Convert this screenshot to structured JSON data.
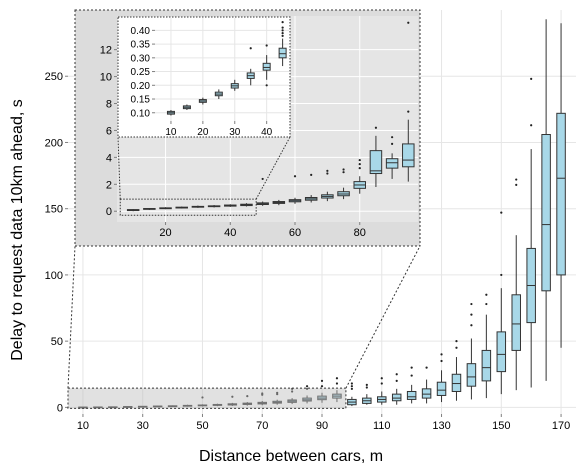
{
  "chart_data": [
    {
      "type": "box",
      "xlabel": "Distance between cars, m",
      "ylabel": "Delay to request data 10km ahead, s",
      "xlim": [
        5,
        175
      ],
      "ylim": [
        -5,
        300
      ],
      "xticks": [
        10,
        30,
        50,
        70,
        90,
        110,
        130,
        150,
        170
      ],
      "yticks": [
        0,
        50,
        100,
        150,
        200,
        250
      ],
      "grid": true,
      "box_fill": "#a8d8e8",
      "series": [
        {
          "x": 10,
          "min": 0,
          "q1": 0.1,
          "median": 0.1,
          "q3": 0.2,
          "max": 0.2,
          "outliers": []
        },
        {
          "x": 15,
          "min": 0.1,
          "q1": 0.2,
          "median": 0.2,
          "q3": 0.3,
          "max": 0.3,
          "outliers": []
        },
        {
          "x": 20,
          "min": 0.1,
          "q1": 0.3,
          "median": 0.3,
          "q3": 0.4,
          "max": 0.5,
          "outliers": []
        },
        {
          "x": 25,
          "min": 0.2,
          "q1": 0.4,
          "median": 0.5,
          "q3": 0.6,
          "max": 0.7,
          "outliers": []
        },
        {
          "x": 30,
          "min": 0.3,
          "q1": 0.5,
          "median": 0.6,
          "q3": 0.8,
          "max": 1.0,
          "outliers": []
        },
        {
          "x": 35,
          "min": 0.4,
          "q1": 0.7,
          "median": 0.8,
          "q3": 1.0,
          "max": 1.3,
          "outliers": []
        },
        {
          "x": 40,
          "min": 0.5,
          "q1": 0.8,
          "median": 1.0,
          "q3": 1.2,
          "max": 1.5,
          "outliers": []
        },
        {
          "x": 45,
          "min": 0.6,
          "q1": 1.0,
          "median": 1.2,
          "q3": 1.5,
          "max": 2.0,
          "outliers": []
        },
        {
          "x": 50,
          "min": 0.7,
          "q1": 1.2,
          "median": 1.5,
          "q3": 1.8,
          "max": 2.3,
          "outliers": [
            7.5
          ]
        },
        {
          "x": 55,
          "min": 0.9,
          "q1": 1.5,
          "median": 1.8,
          "q3": 2.2,
          "max": 2.8,
          "outliers": []
        },
        {
          "x": 60,
          "min": 1.1,
          "q1": 1.8,
          "median": 2.2,
          "q3": 2.7,
          "max": 3.4,
          "outliers": [
            8
          ]
        },
        {
          "x": 65,
          "min": 1.3,
          "q1": 2.2,
          "median": 2.7,
          "q3": 3.2,
          "max": 4.0,
          "outliers": [
            8.5
          ]
        },
        {
          "x": 70,
          "min": 1.6,
          "q1": 2.6,
          "median": 3.2,
          "q3": 3.8,
          "max": 4.8,
          "outliers": [
            9.5,
            10.5
          ]
        },
        {
          "x": 75,
          "min": 2.0,
          "q1": 3.2,
          "median": 3.8,
          "q3": 4.6,
          "max": 5.8,
          "outliers": [
            10,
            11
          ]
        },
        {
          "x": 80,
          "min": 2.5,
          "q1": 3.8,
          "median": 4.7,
          "q3": 5.6,
          "max": 7.0,
          "outliers": [
            12,
            14
          ]
        },
        {
          "x": 85,
          "min": 3.0,
          "q1": 4.8,
          "median": 5.7,
          "q3": 7.0,
          "max": 9.0,
          "outliers": [
            14,
            16
          ]
        },
        {
          "x": 90,
          "min": 3.5,
          "q1": 5.8,
          "median": 7.0,
          "q3": 8.5,
          "max": 11.0,
          "outliers": [
            16,
            20
          ]
        },
        {
          "x": 95,
          "min": 4.0,
          "q1": 7.0,
          "median": 8.5,
          "q3": 10.0,
          "max": 13.0,
          "outliers": [
            18,
            22
          ]
        },
        {
          "x": 100,
          "min": 1.0,
          "q1": 2.0,
          "median": 4.0,
          "q3": 6.0,
          "max": 8.0,
          "outliers": [
            14,
            16,
            18
          ]
        },
        {
          "x": 105,
          "min": 2.0,
          "q1": 3.0,
          "median": 5.0,
          "q3": 7.0,
          "max": 10.0,
          "outliers": [
            15,
            17
          ]
        },
        {
          "x": 110,
          "min": 2.0,
          "q1": 4.0,
          "median": 6.0,
          "q3": 8.0,
          "max": 12.0,
          "outliers": [
            18,
            22
          ]
        },
        {
          "x": 115,
          "min": 2.0,
          "q1": 5.0,
          "median": 7.0,
          "q3": 10.0,
          "max": 14.0,
          "outliers": [
            20,
            25
          ]
        },
        {
          "x": 120,
          "min": 3.0,
          "q1": 6.0,
          "median": 8.0,
          "q3": 12.0,
          "max": 17.0,
          "outliers": [
            24,
            30
          ]
        },
        {
          "x": 125,
          "min": 3.0,
          "q1": 7.0,
          "median": 10.0,
          "q3": 14.0,
          "max": 21.0,
          "outliers": [
            30
          ]
        },
        {
          "x": 130,
          "min": 4.0,
          "q1": 9.0,
          "median": 13.0,
          "q3": 19.0,
          "max": 28.0,
          "outliers": [
            35,
            40
          ]
        },
        {
          "x": 135,
          "min": 5.0,
          "q1": 12.0,
          "median": 18.0,
          "q3": 25.0,
          "max": 38.0,
          "outliers": [
            45,
            50
          ]
        },
        {
          "x": 140,
          "min": 6.0,
          "q1": 16.0,
          "median": 23.0,
          "q3": 33.0,
          "max": 52.0,
          "outliers": [
            62,
            70,
            78
          ]
        },
        {
          "x": 145,
          "min": 7.0,
          "q1": 20.0,
          "median": 30.0,
          "q3": 43.0,
          "max": 70.0,
          "outliers": [
            78,
            85
          ]
        },
        {
          "x": 150,
          "min": 10.0,
          "q1": 27.0,
          "median": 40.0,
          "q3": 57.0,
          "max": 90.0,
          "outliers": [
            100,
            147
          ]
        },
        {
          "x": 155,
          "min": 13.0,
          "q1": 43.0,
          "median": 63.0,
          "q3": 85.0,
          "max": 130.0,
          "outliers": [
            168,
            172
          ]
        },
        {
          "x": 160,
          "min": 15.0,
          "q1": 64.0,
          "median": 92.0,
          "q3": 120.0,
          "max": 195.0,
          "outliers": [
            213,
            248
          ]
        },
        {
          "x": 165,
          "min": 20.0,
          "q1": 88.0,
          "median": 138.0,
          "q3": 206.0,
          "max": 293.0,
          "outliers": []
        },
        {
          "x": 170,
          "min": 45.0,
          "q1": 100.0,
          "median": 173.0,
          "q3": 222.0,
          "max": 290.0,
          "outliers": []
        }
      ]
    },
    {
      "type": "box",
      "role": "inset",
      "xlim": [
        5,
        98
      ],
      "ylim": [
        -0.8,
        14.5
      ],
      "xticks": [
        20,
        40,
        60,
        80
      ],
      "yticks": [
        0,
        2,
        4,
        6,
        8,
        10,
        12
      ],
      "grid": true,
      "box_fill": "#a8d8e8",
      "series": [
        {
          "x": 10,
          "min": 0,
          "q1": 0.05,
          "median": 0.1,
          "q3": 0.12,
          "max": 0.15,
          "outliers": []
        },
        {
          "x": 15,
          "min": 0.1,
          "q1": 0.15,
          "median": 0.18,
          "q3": 0.2,
          "max": 0.22,
          "outliers": []
        },
        {
          "x": 20,
          "min": 0.15,
          "q1": 0.2,
          "median": 0.22,
          "q3": 0.25,
          "max": 0.3,
          "outliers": []
        },
        {
          "x": 25,
          "min": 0.2,
          "q1": 0.25,
          "median": 0.28,
          "q3": 0.3,
          "max": 0.35,
          "outliers": []
        },
        {
          "x": 30,
          "min": 0.25,
          "q1": 0.3,
          "median": 0.33,
          "q3": 0.36,
          "max": 0.42,
          "outliers": []
        },
        {
          "x": 35,
          "min": 0.28,
          "q1": 0.34,
          "median": 0.37,
          "q3": 0.4,
          "max": 0.46,
          "outliers": []
        },
        {
          "x": 40,
          "min": 0.32,
          "q1": 0.38,
          "median": 0.42,
          "q3": 0.46,
          "max": 0.52,
          "outliers": []
        },
        {
          "x": 45,
          "min": 0.35,
          "q1": 0.42,
          "median": 0.47,
          "q3": 0.52,
          "max": 0.6,
          "outliers": []
        },
        {
          "x": 50,
          "min": 0.4,
          "q1": 0.5,
          "median": 0.56,
          "q3": 0.62,
          "max": 0.72,
          "outliers": [
            2.4
          ]
        },
        {
          "x": 55,
          "min": 0.45,
          "q1": 0.58,
          "median": 0.65,
          "q3": 0.72,
          "max": 0.84,
          "outliers": []
        },
        {
          "x": 60,
          "min": 0.55,
          "q1": 0.7,
          "median": 0.78,
          "q3": 0.86,
          "max": 1.0,
          "outliers": [
            2.6
          ]
        },
        {
          "x": 65,
          "min": 0.65,
          "q1": 0.82,
          "median": 0.92,
          "q3": 1.02,
          "max": 1.2,
          "outliers": [
            2.7
          ]
        },
        {
          "x": 70,
          "min": 0.75,
          "q1": 0.98,
          "median": 1.1,
          "q3": 1.22,
          "max": 1.45,
          "outliers": [
            2.8,
            3.0
          ]
        },
        {
          "x": 75,
          "min": 0.9,
          "q1": 1.15,
          "median": 1.28,
          "q3": 1.45,
          "max": 1.75,
          "outliers": [
            2.9,
            3.1
          ]
        },
        {
          "x": 80,
          "min": 1.3,
          "q1": 1.7,
          "median": 1.95,
          "q3": 2.2,
          "max": 2.6,
          "outliers": [
            3.2,
            3.5,
            3.8
          ]
        },
        {
          "x": 85,
          "min": 1.8,
          "q1": 2.8,
          "median": 3.0,
          "q3": 4.5,
          "max": 5.6,
          "outliers": [
            6.2
          ]
        },
        {
          "x": 90,
          "min": 2.4,
          "q1": 3.2,
          "median": 3.6,
          "q3": 3.9,
          "max": 4.3,
          "outliers": [
            5.0,
            5.5
          ]
        },
        {
          "x": 95,
          "min": 2.2,
          "q1": 3.3,
          "median": 3.8,
          "q3": 5.0,
          "max": 6.8,
          "outliers": [
            7.4,
            14.0
          ]
        }
      ]
    },
    {
      "type": "box",
      "role": "nested-inset",
      "xlim": [
        5,
        47
      ],
      "ylim": [
        0.07,
        0.445
      ],
      "xticks": [
        10,
        20,
        30,
        40
      ],
      "yticks": [
        0.1,
        0.15,
        0.2,
        0.25,
        0.3,
        0.35,
        0.4
      ],
      "ytick_labels": [
        "0.10",
        "0.15",
        "0.20",
        "0.25",
        "0.30",
        "0.35",
        "0.40"
      ],
      "grid": true,
      "box_fill": "#a8d8e8",
      "series": [
        {
          "x": 10,
          "min": 0.09,
          "q1": 0.095,
          "median": 0.1,
          "q3": 0.105,
          "max": 0.11,
          "outliers": []
        },
        {
          "x": 15,
          "min": 0.11,
          "q1": 0.115,
          "median": 0.12,
          "q3": 0.125,
          "max": 0.13,
          "outliers": []
        },
        {
          "x": 20,
          "min": 0.13,
          "q1": 0.138,
          "median": 0.143,
          "q3": 0.148,
          "max": 0.155,
          "outliers": []
        },
        {
          "x": 25,
          "min": 0.15,
          "q1": 0.162,
          "median": 0.168,
          "q3": 0.175,
          "max": 0.185,
          "outliers": []
        },
        {
          "x": 30,
          "min": 0.18,
          "q1": 0.19,
          "median": 0.198,
          "q3": 0.206,
          "max": 0.22,
          "outliers": []
        },
        {
          "x": 35,
          "min": 0.2,
          "q1": 0.225,
          "median": 0.235,
          "q3": 0.245,
          "max": 0.26,
          "outliers": [
            0.335
          ]
        },
        {
          "x": 40,
          "min": 0.22,
          "q1": 0.255,
          "median": 0.265,
          "q3": 0.28,
          "max": 0.31,
          "outliers": [
            0.2,
            0.345
          ]
        },
        {
          "x": 45,
          "min": 0.27,
          "q1": 0.3,
          "median": 0.315,
          "q3": 0.335,
          "max": 0.37,
          "outliers": [
            0.38,
            0.39,
            0.4,
            0.41,
            0.43
          ]
        }
      ]
    }
  ]
}
